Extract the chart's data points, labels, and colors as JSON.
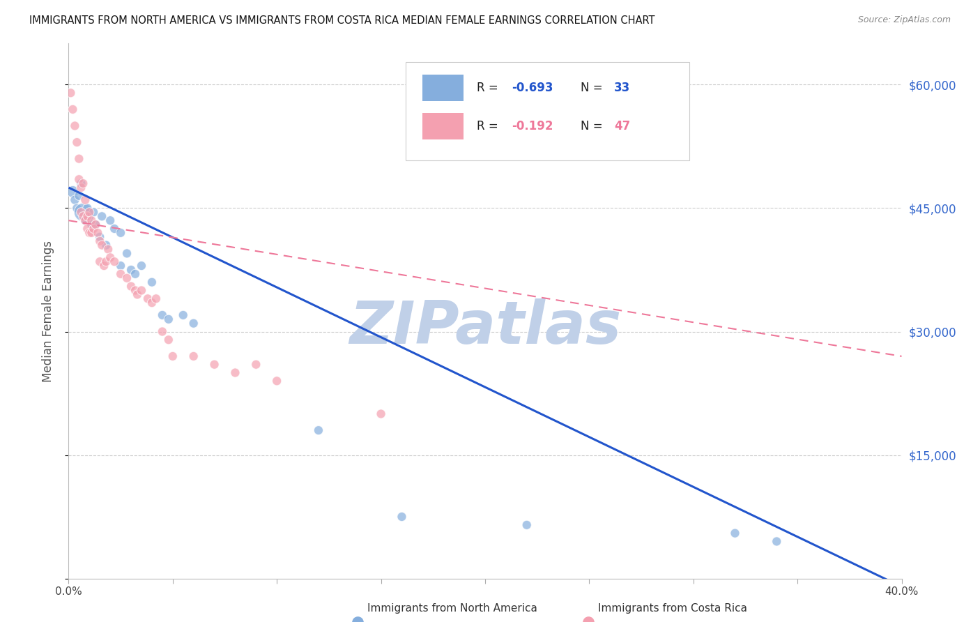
{
  "title": "IMMIGRANTS FROM NORTH AMERICA VS IMMIGRANTS FROM COSTA RICA MEDIAN FEMALE EARNINGS CORRELATION CHART",
  "source": "Source: ZipAtlas.com",
  "ylabel": "Median Female Earnings",
  "xlim": [
    0.0,
    0.4
  ],
  "ylim": [
    0,
    65000
  ],
  "yticks": [
    0,
    15000,
    30000,
    45000,
    60000
  ],
  "ytick_labels": [
    "",
    "$15,000",
    "$30,000",
    "$45,000",
    "$60,000"
  ],
  "legend_r1_label": "R = ",
  "legend_r1_val": "-0.693",
  "legend_n1_label": "  N = ",
  "legend_n1_val": "33",
  "legend_r2_label": "R = ",
  "legend_r2_val": "-0.192",
  "legend_n2_label": "  N = ",
  "legend_n2_val": "47",
  "color_blue": "#85AEDD",
  "color_pink": "#F4A0B0",
  "color_blue_line": "#2255CC",
  "color_pink_line": "#EE7799",
  "watermark": "ZIPatlas",
  "watermark_color": "#C0D0E8",
  "blue_scatter_x": [
    0.002,
    0.003,
    0.004,
    0.005,
    0.006,
    0.007,
    0.008,
    0.009,
    0.01,
    0.011,
    0.012,
    0.013,
    0.015,
    0.016,
    0.018,
    0.02,
    0.022,
    0.025,
    0.025,
    0.028,
    0.03,
    0.032,
    0.035,
    0.04,
    0.045,
    0.048,
    0.055,
    0.06,
    0.12,
    0.16,
    0.22,
    0.32,
    0.34
  ],
  "blue_scatter_y": [
    47000,
    46000,
    45000,
    46500,
    48000,
    44500,
    43500,
    45000,
    44000,
    43000,
    44500,
    43000,
    41500,
    44000,
    40500,
    43500,
    42500,
    42000,
    38000,
    39500,
    37500,
    37000,
    38000,
    36000,
    32000,
    31500,
    32000,
    31000,
    18000,
    7500,
    6500,
    5500,
    4500
  ],
  "blue_sizes": [
    150,
    90,
    90,
    90,
    90,
    350,
    90,
    90,
    90,
    90,
    90,
    90,
    90,
    90,
    90,
    90,
    90,
    90,
    90,
    90,
    90,
    90,
    90,
    90,
    90,
    90,
    90,
    90,
    90,
    90,
    90,
    90,
    90
  ],
  "pink_scatter_x": [
    0.001,
    0.002,
    0.003,
    0.004,
    0.005,
    0.005,
    0.006,
    0.006,
    0.007,
    0.007,
    0.008,
    0.008,
    0.009,
    0.009,
    0.01,
    0.01,
    0.011,
    0.011,
    0.012,
    0.013,
    0.014,
    0.015,
    0.015,
    0.016,
    0.017,
    0.018,
    0.019,
    0.02,
    0.022,
    0.025,
    0.028,
    0.03,
    0.032,
    0.033,
    0.035,
    0.038,
    0.04,
    0.042,
    0.045,
    0.048,
    0.05,
    0.06,
    0.07,
    0.08,
    0.09,
    0.1,
    0.15
  ],
  "pink_scatter_y": [
    59000,
    57000,
    55000,
    53000,
    51000,
    48500,
    47500,
    44500,
    48000,
    44000,
    46000,
    43500,
    44000,
    42500,
    44500,
    42000,
    43500,
    42000,
    42500,
    43000,
    42000,
    41000,
    38500,
    40500,
    38000,
    38500,
    40000,
    39000,
    38500,
    37000,
    36500,
    35500,
    35000,
    34500,
    35000,
    34000,
    33500,
    34000,
    30000,
    29000,
    27000,
    27000,
    26000,
    25000,
    26000,
    24000,
    20000
  ],
  "pink_sizes": [
    90,
    90,
    90,
    90,
    90,
    90,
    90,
    90,
    90,
    90,
    90,
    90,
    90,
    90,
    90,
    90,
    90,
    90,
    90,
    90,
    90,
    90,
    90,
    90,
    90,
    90,
    90,
    90,
    90,
    90,
    90,
    90,
    90,
    90,
    90,
    90,
    90,
    90,
    90,
    90,
    90,
    90,
    90,
    90,
    90,
    90,
    90
  ],
  "blue_line_x0": 0.0,
  "blue_line_x1": 0.4,
  "blue_line_y0": 47500,
  "blue_line_y1": -1000,
  "pink_line_x0": 0.0,
  "pink_line_x1": 0.4,
  "pink_line_y0": 43500,
  "pink_line_y1": 27000,
  "background_color": "#FFFFFF",
  "grid_color": "#CCCCCC",
  "title_color": "#111111",
  "axis_label_color": "#555555",
  "right_tick_color": "#3366CC",
  "legend_text_color": "#222222",
  "legend_blue_val_color": "#2255CC",
  "legend_pink_val_color": "#EE7799"
}
